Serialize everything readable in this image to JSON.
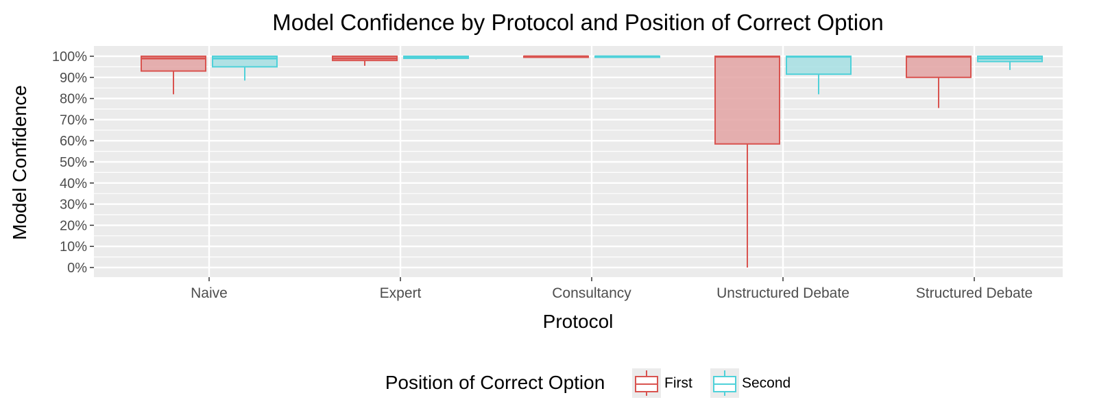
{
  "chart_data": {
    "type": "box",
    "title": "Model Confidence by Protocol and Position of Correct Option",
    "xlabel": "Protocol",
    "ylabel": "Model Confidence",
    "ylim": [
      0,
      1
    ],
    "y_ticks": [
      0,
      0.1,
      0.2,
      0.3,
      0.4,
      0.5,
      0.6,
      0.7,
      0.8,
      0.9,
      1.0
    ],
    "y_tick_labels": [
      "0%",
      "10%",
      "20%",
      "30%",
      "40%",
      "50%",
      "60%",
      "70%",
      "80%",
      "90%",
      "100%"
    ],
    "categories": [
      "Naive",
      "Expert",
      "Consultancy",
      "Unstructured Debate",
      "Structured Debate"
    ],
    "legend": {
      "title": "Position of Correct Option",
      "position": "bottom",
      "entries": [
        "First",
        "Second"
      ]
    },
    "grid": true,
    "series": [
      {
        "name": "First",
        "color": "#d9534f",
        "fill": "#e3a3a3",
        "boxes": [
          {
            "category": "Naive",
            "lower_whisker": 0.82,
            "q1": 0.93,
            "median": 0.99,
            "q3": 1.0,
            "upper_whisker": 1.0
          },
          {
            "category": "Expert",
            "lower_whisker": 0.955,
            "q1": 0.98,
            "median": 0.99,
            "q3": 1.0,
            "upper_whisker": 1.0
          },
          {
            "category": "Consultancy",
            "lower_whisker": 0.995,
            "q1": 0.995,
            "median": 0.999,
            "q3": 1.0,
            "upper_whisker": 1.0
          },
          {
            "category": "Unstructured Debate",
            "lower_whisker": 0.0,
            "q1": 0.585,
            "median": 0.998,
            "q3": 1.0,
            "upper_whisker": 1.0
          },
          {
            "category": "Structured Debate",
            "lower_whisker": 0.755,
            "q1": 0.9,
            "median": 0.998,
            "q3": 1.0,
            "upper_whisker": 1.0
          }
        ]
      },
      {
        "name": "Second",
        "color": "#4fd1d9",
        "fill": "#a6dfe3",
        "boxes": [
          {
            "category": "Naive",
            "lower_whisker": 0.885,
            "q1": 0.95,
            "median": 0.99,
            "q3": 1.0,
            "upper_whisker": 1.0
          },
          {
            "category": "Expert",
            "lower_whisker": 0.985,
            "q1": 0.99,
            "median": 0.997,
            "q3": 1.0,
            "upper_whisker": 1.0
          },
          {
            "category": "Consultancy",
            "lower_whisker": 0.995,
            "q1": 0.995,
            "median": 0.999,
            "q3": 1.0,
            "upper_whisker": 1.0
          },
          {
            "category": "Unstructured Debate",
            "lower_whisker": 0.82,
            "q1": 0.915,
            "median": 0.998,
            "q3": 1.0,
            "upper_whisker": 1.0
          },
          {
            "category": "Structured Debate",
            "lower_whisker": 0.935,
            "q1": 0.975,
            "median": 0.99,
            "q3": 1.0,
            "upper_whisker": 1.0
          }
        ]
      }
    ]
  }
}
